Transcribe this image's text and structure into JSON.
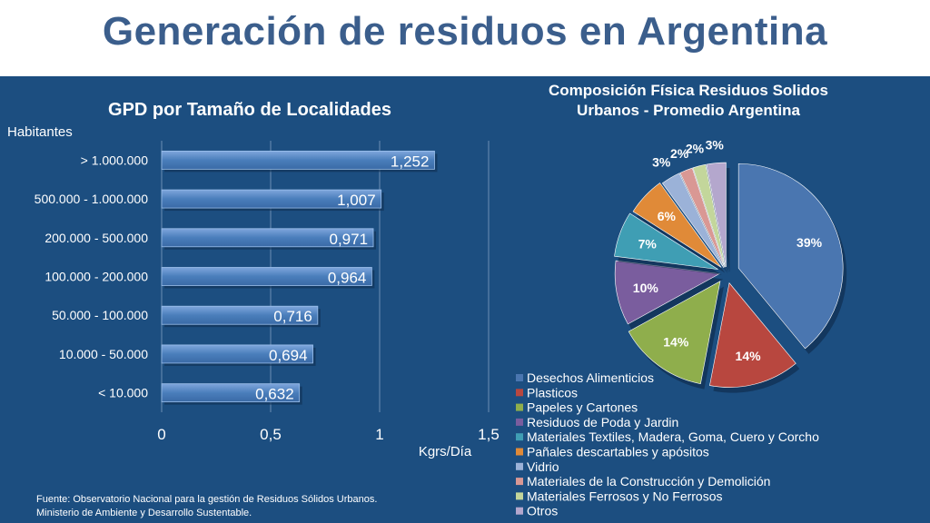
{
  "slide": {
    "title": "Generación de residuos en Argentina",
    "source_line1": "Fuente: Observatorio Nacional para la gestión de Residuos Sólidos Urbanos.",
    "source_line2": "Ministerio de Ambiente y Desarrollo  Sustentable."
  },
  "chart_data": [
    {
      "type": "bar",
      "orientation": "horizontal",
      "title": "GPD por Tamaño de Localidades",
      "ylabel": "Habitantes",
      "xlabel": "Kgrs/Día",
      "categories": [
        "> 1.000.000",
        "500.000 - 1.000.000",
        "200.000 - 500.000",
        "100.000 - 200.000",
        "50.000 - 100.000",
        "10.000 - 50.000",
        "< 10.000"
      ],
      "values": [
        1.252,
        1.007,
        0.971,
        0.964,
        0.716,
        0.694,
        0.632
      ],
      "value_labels": [
        "1,252",
        "1,007",
        "0,971",
        "0,964",
        "0,716",
        "0,694",
        "0,632"
      ],
      "xlim": [
        0,
        1.5
      ],
      "xticks": [
        0,
        0.5,
        1,
        1.5
      ],
      "xtick_labels": [
        "0",
        "0,5",
        "1",
        "1,5"
      ],
      "grid": true,
      "bar_color": "#4a7ebb"
    },
    {
      "type": "pie",
      "title_line1": "Composición Física Residuos Solidos",
      "title_line2": "Urbanos -  Promedio Argentina",
      "legend_position": "bottom-left",
      "slices": [
        {
          "label": "Desechos Alimenticios",
          "value": 39,
          "display": "39%",
          "color": "#4a76b0"
        },
        {
          "label": "Plasticos",
          "value": 14,
          "display": "14%",
          "color": "#b8473f"
        },
        {
          "label": "Papeles y Cartones",
          "value": 14,
          "display": "14%",
          "color": "#8fae4c"
        },
        {
          "label": "Residuos de Poda y Jardin",
          "value": 10,
          "display": "10%",
          "color": "#7a5d9e"
        },
        {
          "label": "Materiales Textiles, Madera, Goma, Cuero y Corcho",
          "value": 7,
          "display": "7%",
          "color": "#3f9eb4"
        },
        {
          "label": "Pañales descartables y apósitos",
          "value": 6,
          "display": "6%",
          "color": "#e08a38"
        },
        {
          "label": "Vidrio",
          "value": 3,
          "display": "3%",
          "color": "#9bb2d8"
        },
        {
          "label": "Materiales de la Construcción y Demolición",
          "value": 2,
          "display": "2%",
          "color": "#d99894"
        },
        {
          "label": "Materiales Ferrosos y No Ferrosos",
          "value": 2,
          "display": "2%",
          "color": "#c3d69b"
        },
        {
          "label": "Otros",
          "value": 3,
          "display": "3%",
          "color": "#b4a7cd"
        }
      ]
    }
  ]
}
